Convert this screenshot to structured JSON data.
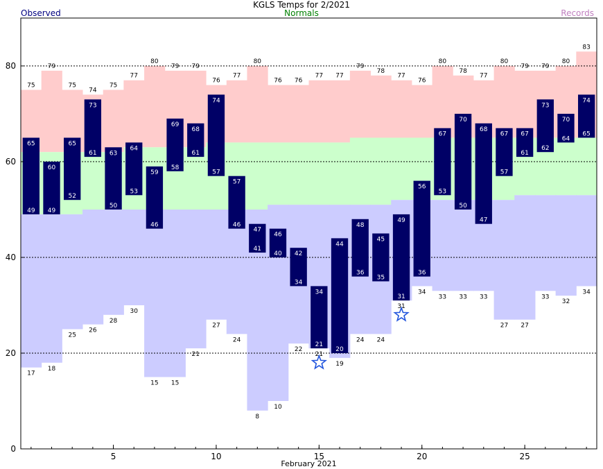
{
  "title": "KGLS Temps for 2/2021",
  "legend": {
    "observed": "Observed",
    "normals": "Normals",
    "records": "Records"
  },
  "colors": {
    "observed": "#000066",
    "normal_band": "#ccffcc",
    "record_high_band": "#ffcccc",
    "record_low_band": "#ccccff",
    "star": "#2255dd",
    "observed_label": "#000080",
    "normals_label": "#008000",
    "records_label": "#c080c0"
  },
  "chart_data": {
    "type": "bar",
    "xlabel": "February 2021",
    "ylabel": "",
    "xlim": [
      0.5,
      28.5
    ],
    "ylim": [
      0,
      90
    ],
    "x_ticks": [
      5,
      10,
      15,
      20,
      25
    ],
    "y_ticks": [
      0,
      20,
      40,
      60,
      80
    ],
    "gridlines_y": [
      20,
      40,
      60,
      80
    ],
    "days": [
      1,
      2,
      3,
      4,
      5,
      6,
      7,
      8,
      9,
      10,
      11,
      12,
      13,
      14,
      15,
      16,
      17,
      18,
      19,
      20,
      21,
      22,
      23,
      24,
      25,
      26,
      27,
      28
    ],
    "observed_high": [
      65,
      60,
      65,
      73,
      63,
      64,
      59,
      69,
      68,
      74,
      57,
      47,
      46,
      42,
      34,
      44,
      48,
      45,
      49,
      56,
      67,
      70,
      68,
      67,
      67,
      73,
      70,
      74
    ],
    "observed_low": [
      49,
      49,
      52,
      61,
      50,
      53,
      46,
      58,
      61,
      57,
      46,
      41,
      40,
      34,
      21,
      20,
      36,
      35,
      31,
      36,
      53,
      50,
      47,
      57,
      61,
      62,
      64,
      65
    ],
    "normal_high": [
      62,
      62,
      62,
      62,
      62,
      63,
      63,
      63,
      63,
      64,
      64,
      64,
      64,
      64,
      64,
      64,
      65,
      65,
      65,
      65,
      65,
      65,
      65,
      65,
      65,
      65,
      65,
      65
    ],
    "normal_low": [
      49,
      49,
      49,
      50,
      50,
      50,
      50,
      50,
      50,
      50,
      50,
      50,
      51,
      51,
      51,
      51,
      51,
      51,
      52,
      52,
      52,
      52,
      52,
      52,
      53,
      53,
      53,
      53
    ],
    "record_high": [
      75,
      79,
      75,
      74,
      75,
      77,
      80,
      79,
      79,
      76,
      77,
      80,
      76,
      76,
      77,
      77,
      79,
      78,
      77,
      76,
      80,
      78,
      77,
      80,
      79,
      79,
      80,
      83
    ],
    "record_low": [
      17,
      18,
      25,
      26,
      28,
      30,
      15,
      15,
      21,
      27,
      24,
      8,
      10,
      22,
      21,
      19,
      24,
      24,
      31,
      34,
      33,
      33,
      33,
      27,
      27,
      33,
      32,
      34
    ],
    "record_lows_set_days": [
      15,
      19
    ],
    "record_lows_set_values": [
      18,
      28
    ]
  }
}
